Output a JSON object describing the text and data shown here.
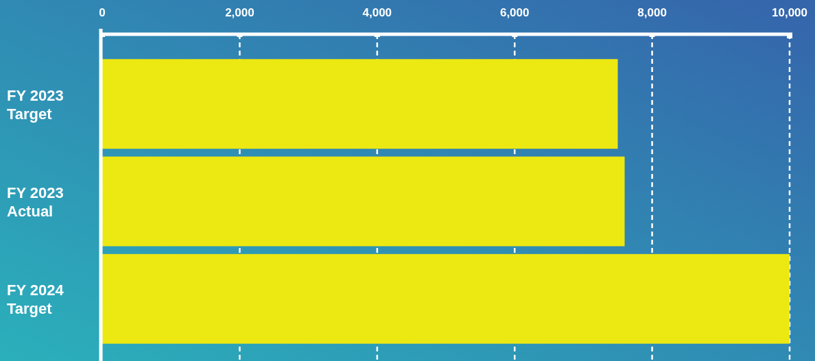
{
  "chart_data": {
    "type": "bar",
    "orientation": "horizontal",
    "categories": [
      "FY 2023 Target",
      "FY 2023 Actual",
      "FY 2024 Target"
    ],
    "values": [
      7500,
      7600,
      10000
    ],
    "color": "#ece812",
    "xlim": [
      0,
      10000
    ],
    "xticks": [
      {
        "value": 0,
        "label": "0"
      },
      {
        "value": 2000,
        "label": "2,000"
      },
      {
        "value": 4000,
        "label": "4,000"
      },
      {
        "value": 6000,
        "label": "6,000"
      },
      {
        "value": 8000,
        "label": "8,000"
      },
      {
        "value": 10000,
        "label": "10,000"
      }
    ],
    "grid": "x"
  }
}
